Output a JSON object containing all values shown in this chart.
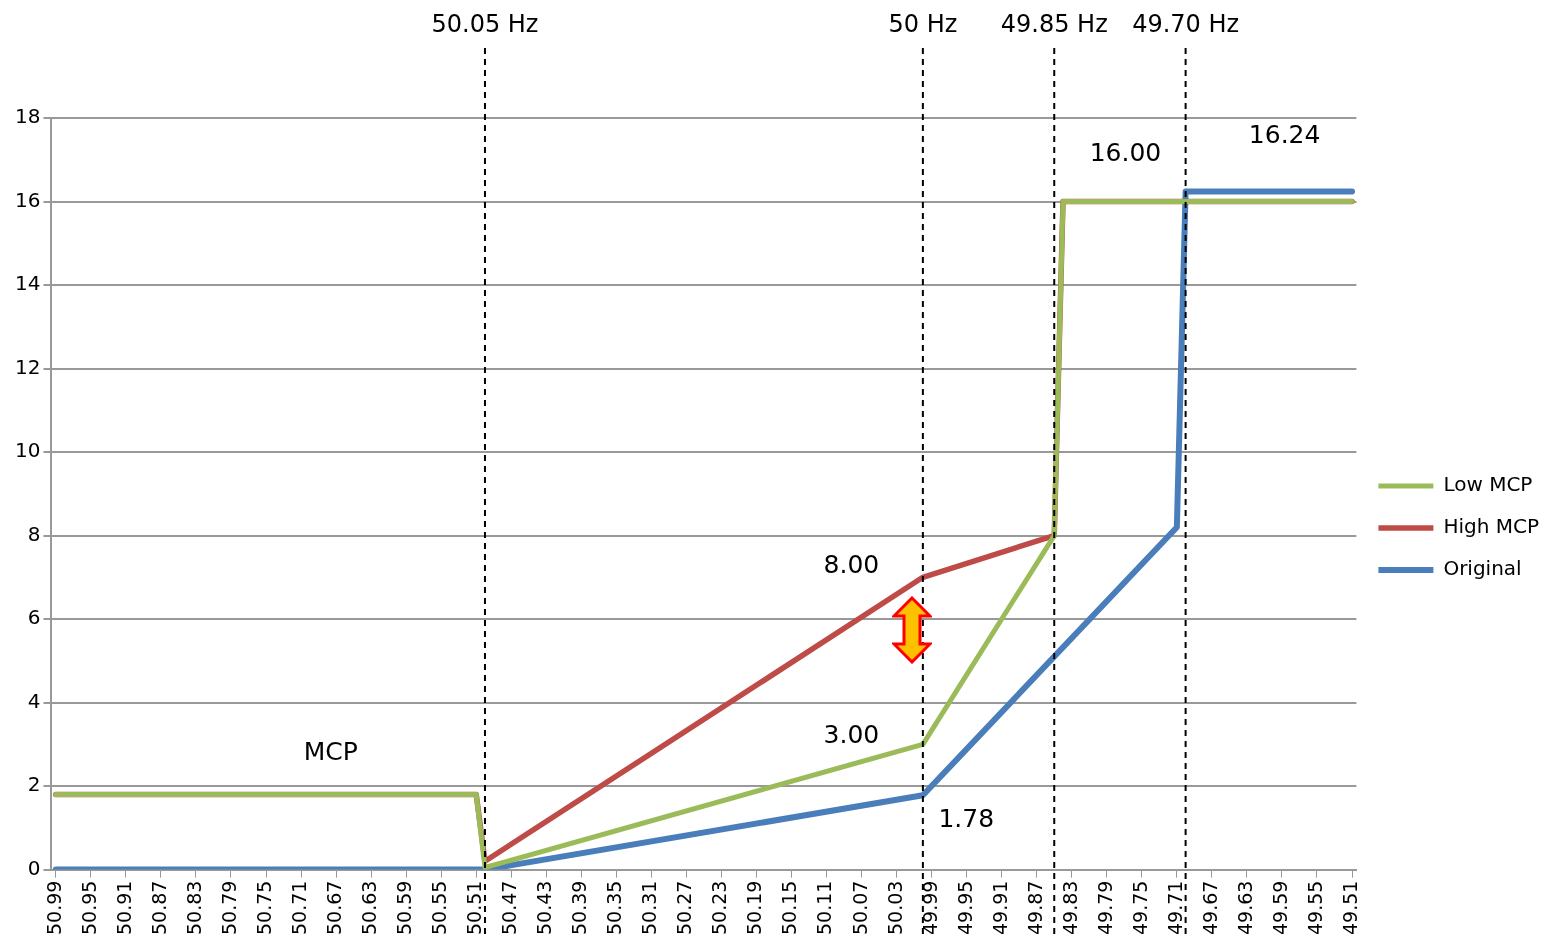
{
  "chart_data": {
    "type": "line",
    "series": [
      {
        "name": "Original",
        "color": "#4a7ebb",
        "x": [
          50.99,
          50.5,
          50.0,
          49.71,
          49.7,
          49.51
        ],
        "values": [
          0,
          0,
          1.78,
          8.2,
          16.24,
          16.24
        ]
      },
      {
        "name": "High MCP",
        "color": "#be4b48",
        "x": [
          50.99,
          50.51,
          50.5,
          50.0,
          49.85,
          49.84,
          49.51
        ],
        "values": [
          1.8,
          1.8,
          0.2,
          7.0,
          8.0,
          16.0,
          16.0
        ]
      },
      {
        "name": "Low MCP",
        "color": "#9bbb59",
        "x": [
          50.99,
          50.51,
          50.5,
          50.0,
          49.85,
          49.84,
          49.51
        ],
        "values": [
          1.8,
          1.8,
          0.05,
          3.0,
          8.0,
          16.0,
          16.0
        ]
      }
    ],
    "xlim": [
      50.995,
      49.505
    ],
    "xticks": [
      50.99,
      50.95,
      50.91,
      50.87,
      50.83,
      50.79,
      50.75,
      50.71,
      50.67,
      50.63,
      50.59,
      50.55,
      50.51,
      50.47,
      50.43,
      50.39,
      50.35,
      50.31,
      50.27,
      50.23,
      50.19,
      50.15,
      50.11,
      50.07,
      50.03,
      49.99,
      49.95,
      49.91,
      49.87,
      49.83,
      49.79,
      49.75,
      49.71,
      49.67,
      49.63,
      49.59,
      49.55,
      49.51
    ],
    "ylim": [
      0,
      18
    ],
    "yticks": [
      0,
      2,
      4,
      6,
      8,
      10,
      12,
      14,
      16,
      18
    ],
    "grid": "y",
    "legend": "right",
    "marker": "none",
    "line_style": "solid",
    "ref_lines": [
      {
        "axis": "x",
        "value": 50.5,
        "label": "50.05 Hz",
        "line_style": "dashed",
        "color": "#000000"
      },
      {
        "axis": "x",
        "value": 50.0,
        "label": "50 Hz",
        "line_style": "dashed",
        "color": "#000000"
      },
      {
        "axis": "x",
        "value": 49.85,
        "label": "49.85 Hz",
        "line_style": "dashed",
        "color": "#000000"
      },
      {
        "axis": "x",
        "value": 49.7,
        "label": "49.70 Hz",
        "line_style": "dashed",
        "color": "#000000"
      }
    ],
    "annotations": [
      "MCP",
      "8.00",
      "3.00",
      "1.78",
      "16.00",
      "16.24"
    ]
  }
}
